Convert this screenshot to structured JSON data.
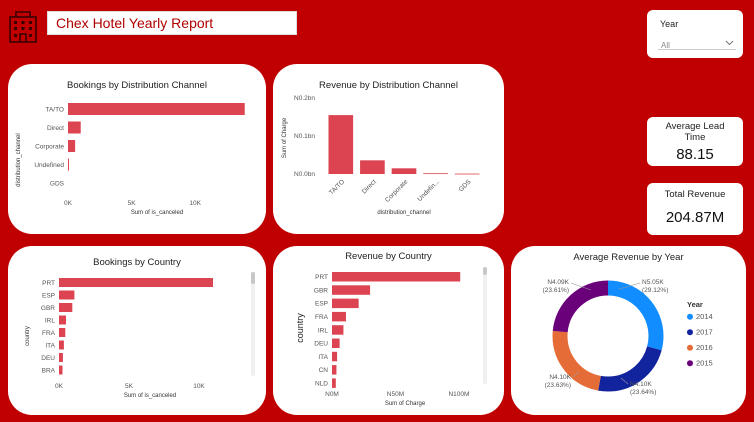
{
  "header": {
    "title": "Chex Hotel Yearly Report",
    "logo_icon": "hotel-building-icon"
  },
  "year_filter": {
    "label": "Year",
    "value": "All"
  },
  "kpis": {
    "lead_time": {
      "label": "Average Lead Time",
      "value": "88.15"
    },
    "revenue": {
      "label": "Total Revenue",
      "value": "204.87M"
    }
  },
  "colors": {
    "background": "#c00000",
    "bar": "#dc4452"
  },
  "charts": {
    "bookings_channel": {
      "title": "Bookings by Distribution Channel",
      "xlabel": "Sum of is_canceled",
      "ylabel": "distribution_channel",
      "ticks": [
        "0K",
        "5K",
        "10K"
      ]
    },
    "revenue_channel": {
      "title": "Revenue by Distribution Channel",
      "xlabel": "distribution_channel",
      "ylabel": "Sum of Charge",
      "ticks": [
        "N0.0bn",
        "N0.1bn",
        "N0.2bn"
      ]
    },
    "bookings_country": {
      "title": "Bookings by Country",
      "xlabel": "Sum of is_canceled",
      "ylabel": "country",
      "ticks": [
        "0K",
        "5K",
        "10K"
      ]
    },
    "revenue_country": {
      "title": "Revenue by Country",
      "xlabel": "Sum of Charge",
      "ylabel": "country",
      "ticks": [
        "N0M",
        "N50M",
        "N100M"
      ]
    },
    "avg_revenue_year": {
      "title": "Average Revenue by Year",
      "legend_title": "Year"
    }
  },
  "chart_data": [
    {
      "id": "bookings_channel",
      "type": "bar",
      "orientation": "horizontal",
      "categories": [
        "TA/TO",
        "Direct",
        "Corporate",
        "Undefined",
        "GDS"
      ],
      "values": [
        13900,
        1000,
        560,
        40,
        0
      ],
      "xlim": [
        0,
        14000
      ]
    },
    {
      "id": "revenue_channel",
      "type": "bar",
      "orientation": "vertical",
      "categories": [
        "TA/TO",
        "Direct",
        "Corporate",
        "Undefin...",
        "GDS"
      ],
      "values": [
        0.155,
        0.036,
        0.015,
        0.002,
        0.001
      ],
      "ylim": [
        0,
        0.2
      ]
    },
    {
      "id": "bookings_country",
      "type": "bar",
      "orientation": "horizontal",
      "categories": [
        "PRT",
        "ESP",
        "GBR",
        "IRL",
        "FRA",
        "ITA",
        "DEU",
        "BRA"
      ],
      "values": [
        11000,
        1100,
        950,
        500,
        450,
        350,
        280,
        250
      ],
      "xlim": [
        0,
        13000
      ]
    },
    {
      "id": "revenue_country",
      "type": "bar",
      "orientation": "horizontal",
      "categories": [
        "PRT",
        "GBR",
        "ESP",
        "FRA",
        "IRL",
        "DEU",
        "ITA",
        "CN",
        "NLD"
      ],
      "values": [
        101,
        30,
        21,
        11,
        9,
        6,
        4,
        3.5,
        3
      ],
      "xlim": [
        0,
        115
      ]
    },
    {
      "id": "avg_revenue_year",
      "type": "pie",
      "donut": true,
      "series": [
        {
          "name": "2014",
          "value": "N5.05K",
          "percent": "(29.12%)",
          "share": 29.12,
          "color": "#118dff"
        },
        {
          "name": "2017",
          "value": "N4.10K",
          "percent": "(23.64%)",
          "share": 23.64,
          "color": "#12239e"
        },
        {
          "name": "2016",
          "value": "N4.10K",
          "percent": "(23.63%)",
          "share": 23.63,
          "color": "#e66c37"
        },
        {
          "name": "2015",
          "value": "N4.09K",
          "percent": "(23.61%)",
          "share": 23.61,
          "color": "#6b007b"
        }
      ]
    }
  ]
}
